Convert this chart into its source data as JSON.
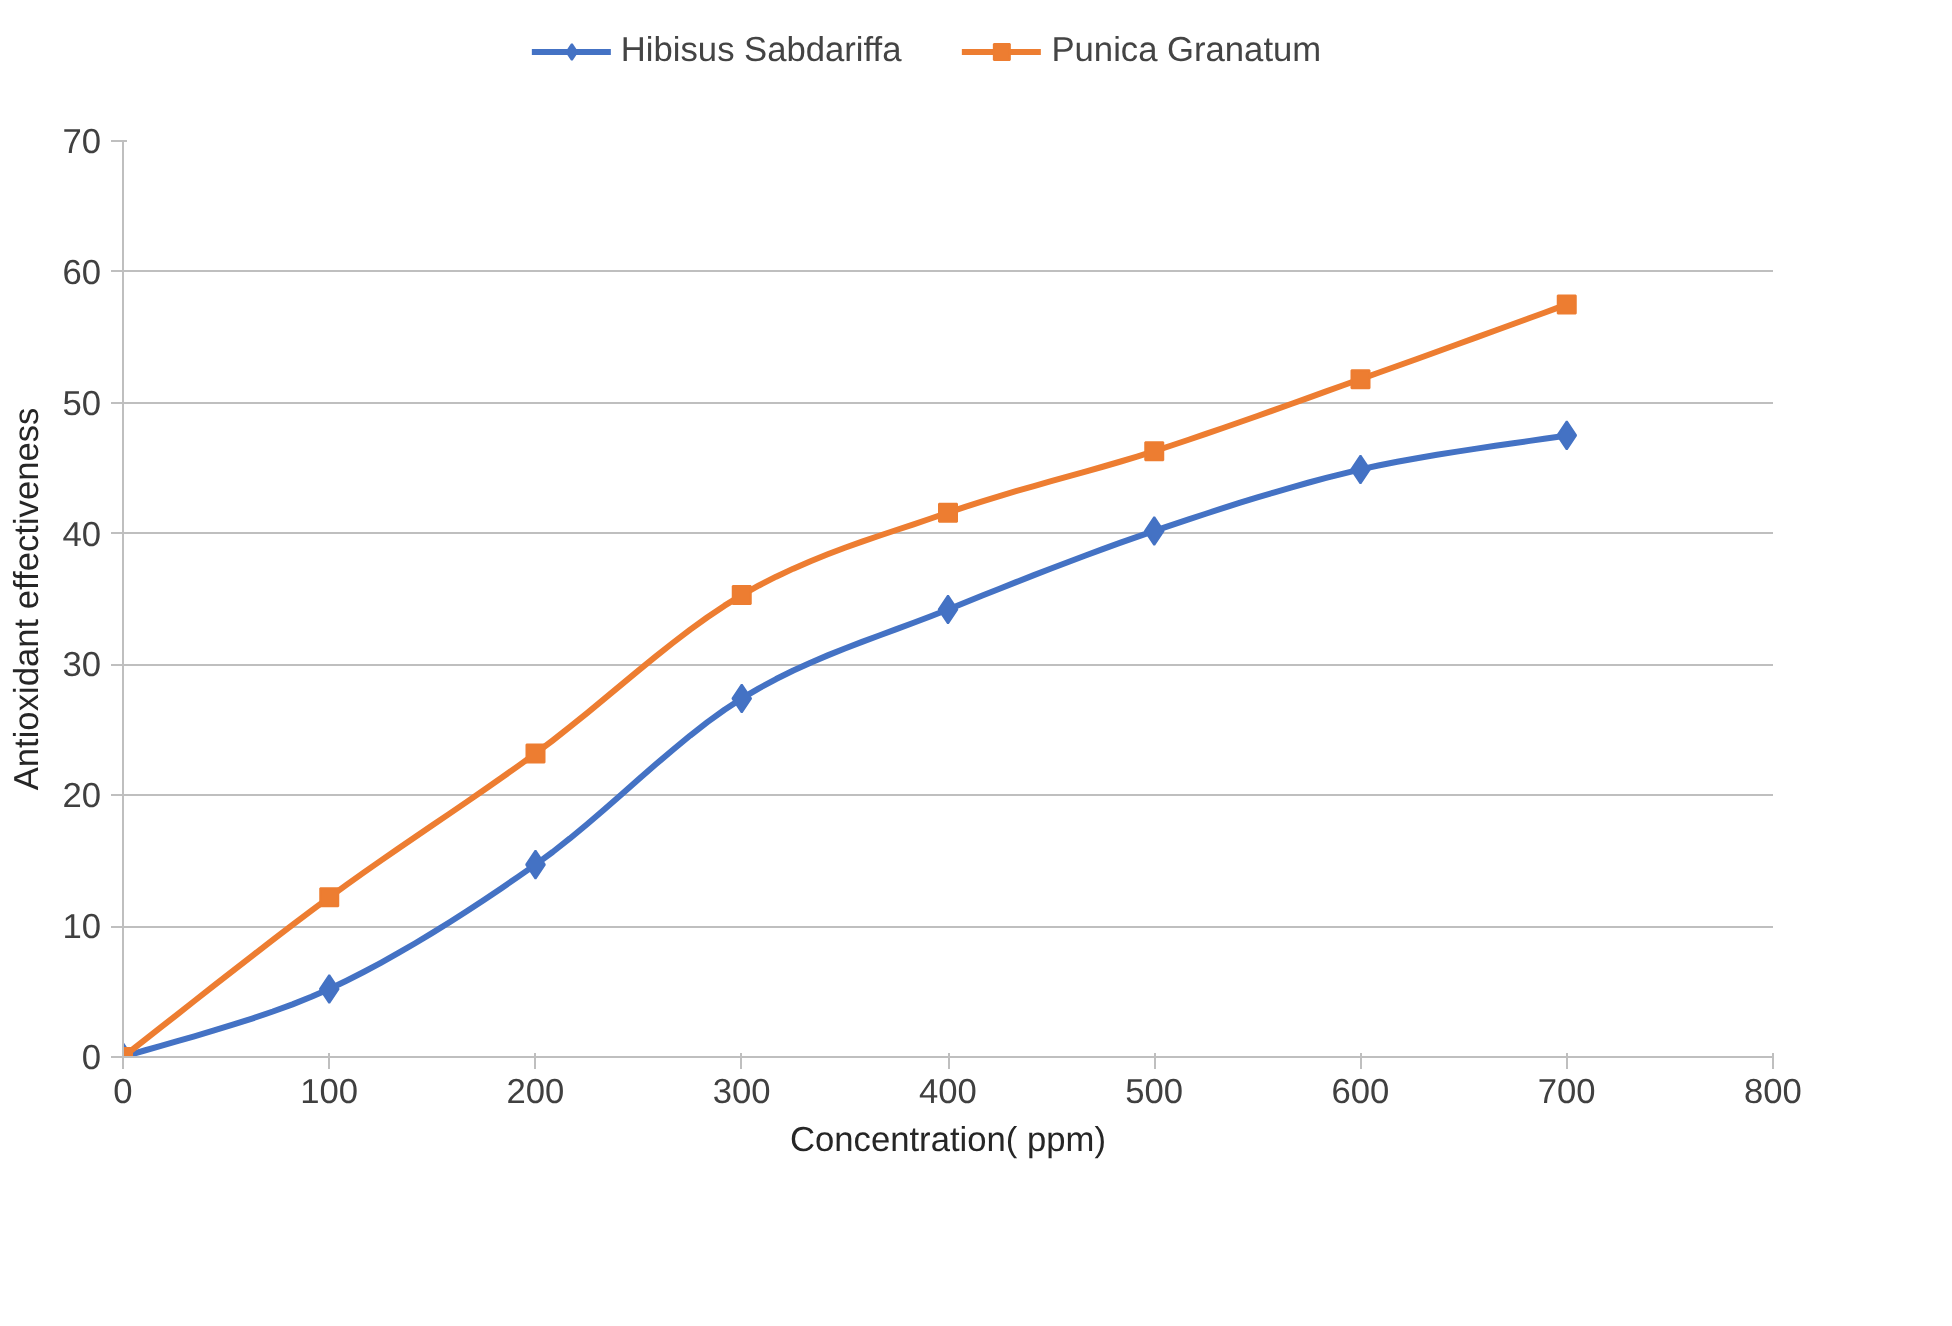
{
  "chart_data": {
    "type": "line",
    "xlabel": "Concentration( ppm)",
    "ylabel": "Antioxidant effectiveness",
    "x": [
      0,
      100,
      200,
      300,
      400,
      500,
      600,
      700
    ],
    "series": [
      {
        "name": "Hibisus Sabdariffa",
        "color": "#4472c4",
        "marker": "diamond",
        "values": [
          0,
          5.2,
          14.7,
          27.4,
          34.2,
          40.2,
          44.9,
          47.5
        ]
      },
      {
        "name": "Punica Granatum",
        "color": "#ed7d31",
        "marker": "square",
        "values": [
          0,
          12.2,
          23.2,
          35.3,
          41.6,
          46.3,
          51.8,
          57.5
        ]
      }
    ],
    "xlim": [
      0,
      800
    ],
    "xticks": [
      0,
      100,
      200,
      300,
      400,
      500,
      600,
      700,
      800
    ],
    "ylim": [
      0,
      70
    ],
    "yticks": [
      0,
      10,
      20,
      30,
      40,
      50,
      60,
      70
    ],
    "grid": "y",
    "legend": "top",
    "line_style": "solid"
  }
}
